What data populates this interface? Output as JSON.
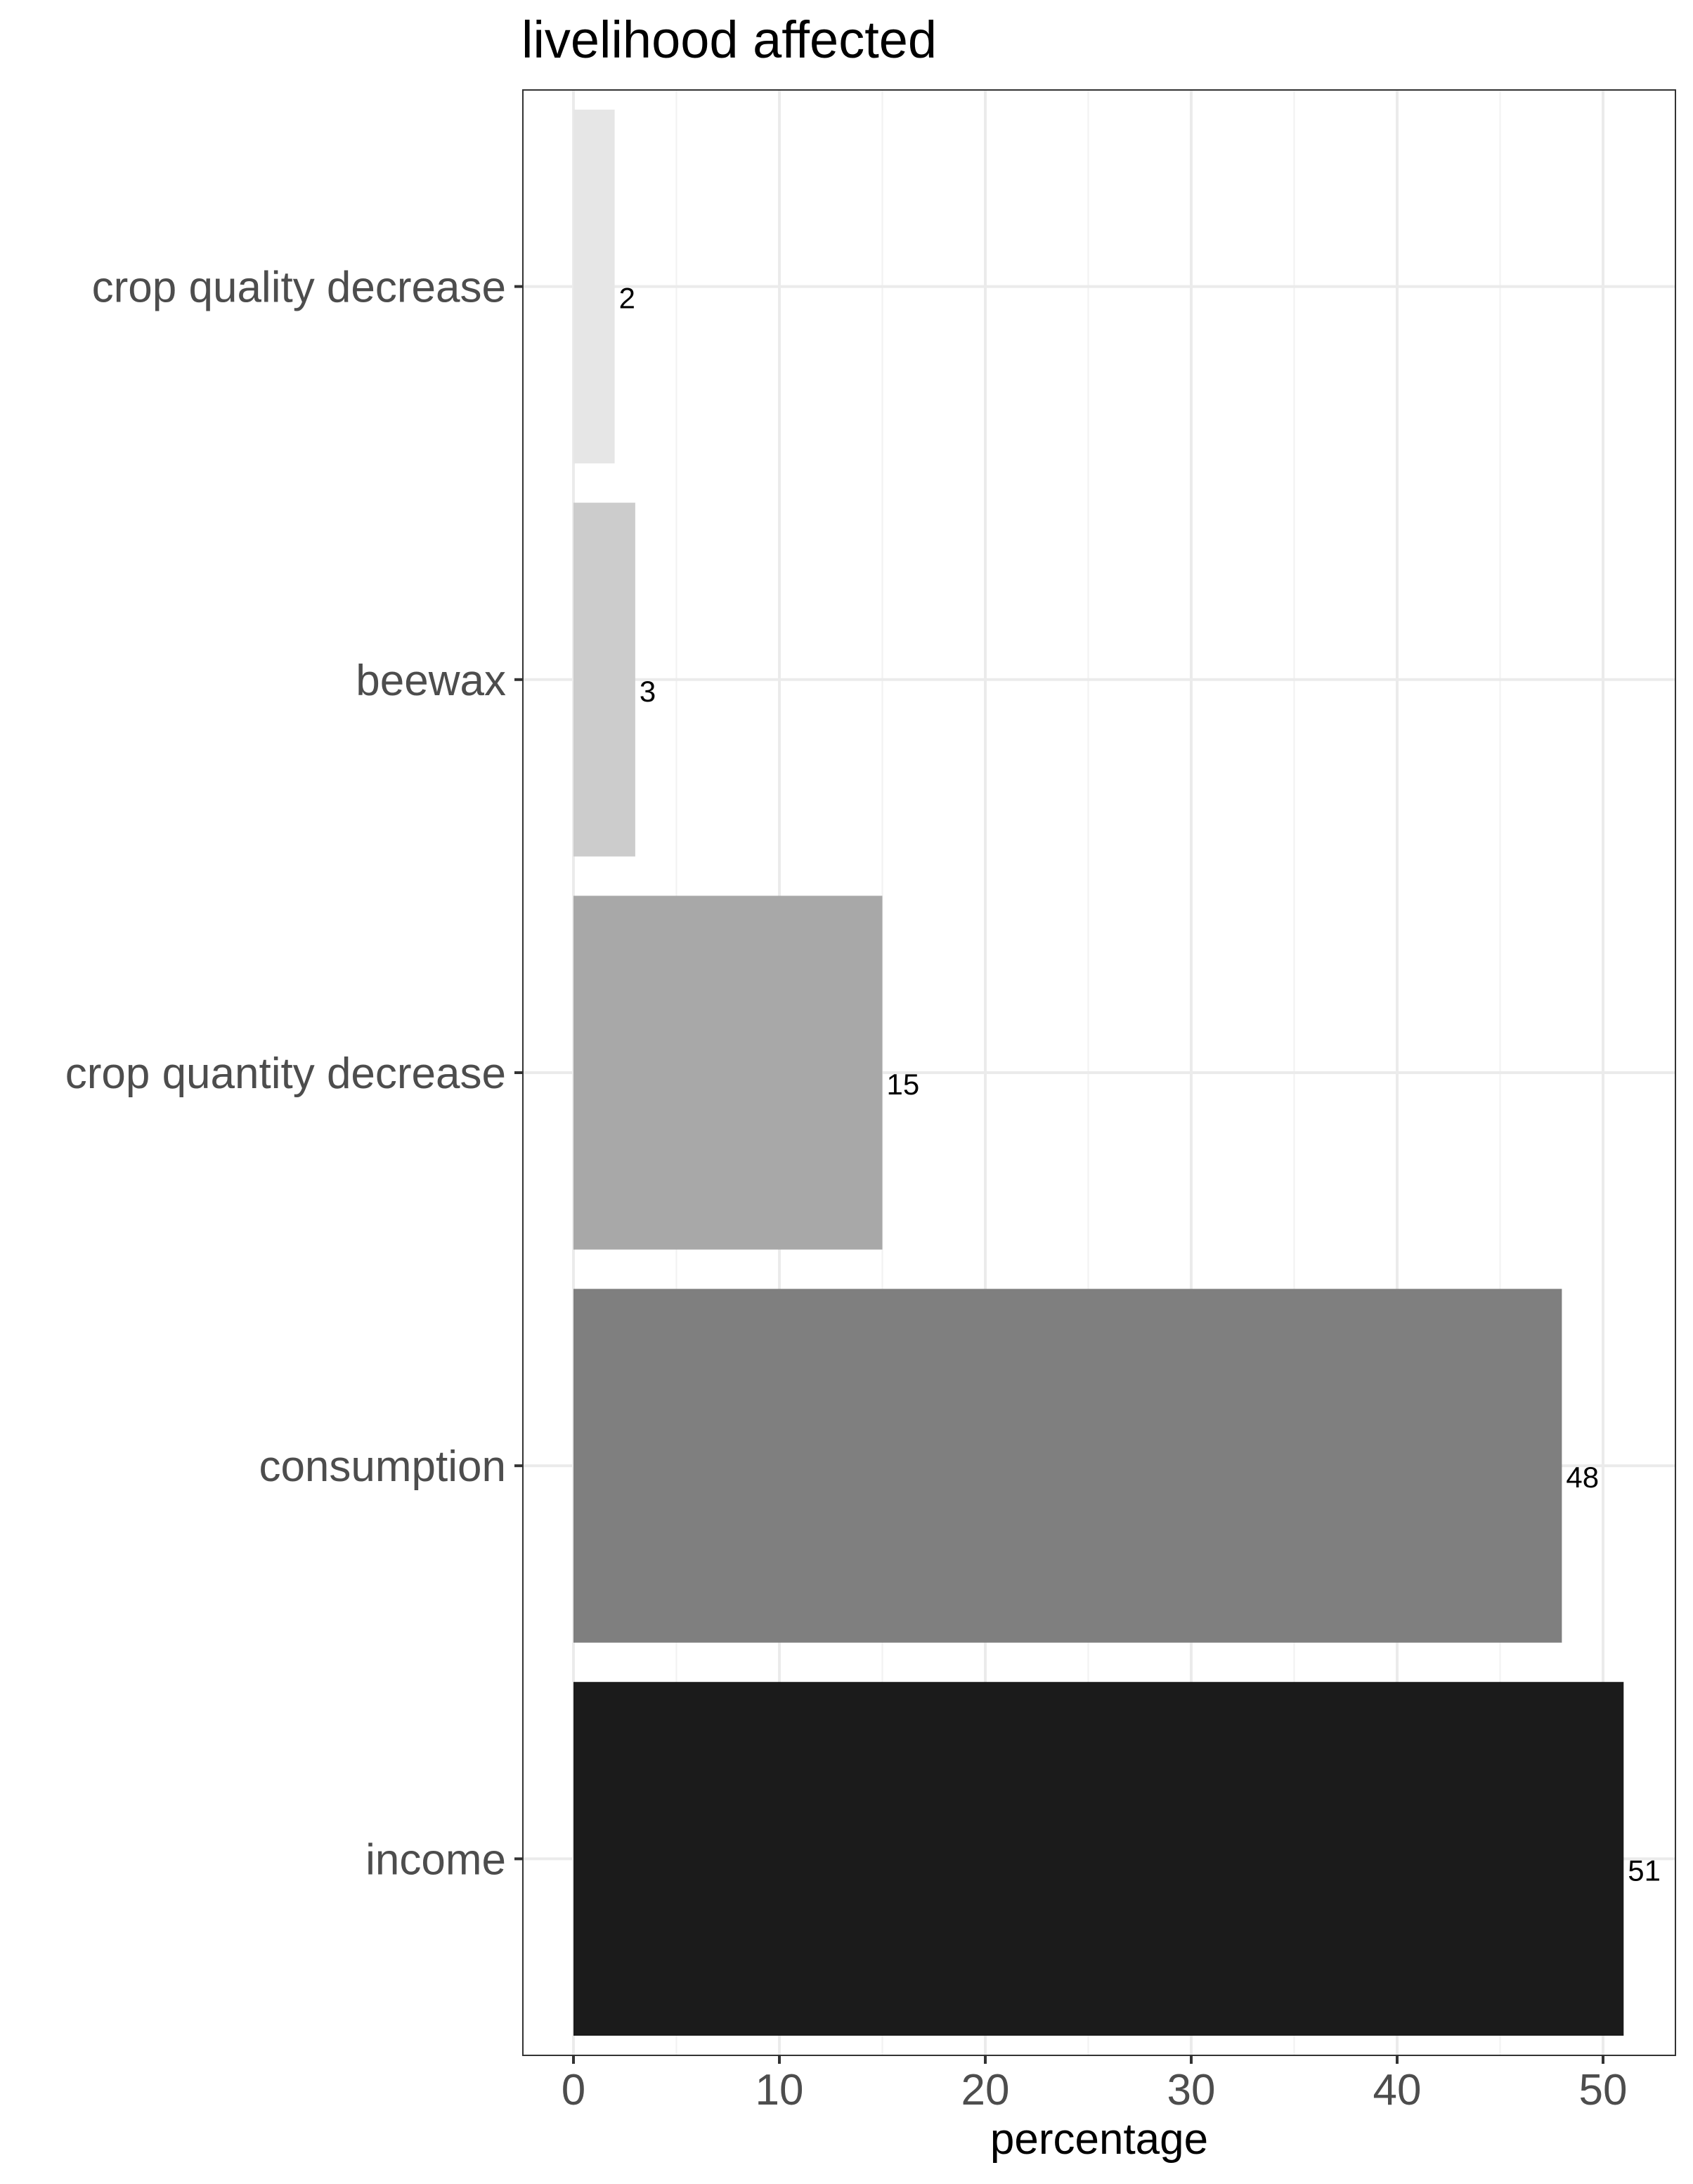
{
  "chart_data": {
    "type": "bar",
    "orientation": "horizontal",
    "title": "livelihood affected",
    "xlabel": "percentage",
    "ylabel": "",
    "categories": [
      "crop quality decrease",
      "beewax",
      "crop quantity decrease",
      "consumption",
      "income"
    ],
    "values": [
      2,
      3,
      15,
      48,
      51
    ],
    "data_labels": [
      "2",
      "3",
      "15",
      "48",
      "51"
    ],
    "colors": [
      "#e6e6e6",
      "#cccccc",
      "#a8a8a8",
      "#7f7f7f",
      "#1b1b1b"
    ],
    "xlim": [
      0,
      51
    ],
    "x_ticks": [
      0,
      10,
      20,
      30,
      40,
      50
    ],
    "x_tick_labels": [
      "0",
      "10",
      "20",
      "30",
      "40",
      "50"
    ],
    "grid": true,
    "legend": "none"
  }
}
